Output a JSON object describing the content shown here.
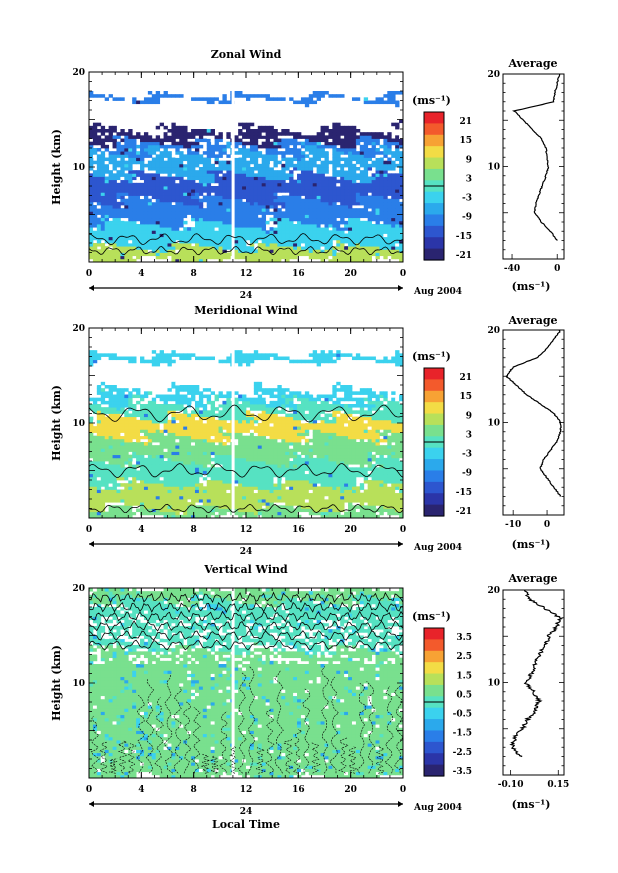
{
  "chart_data": [
    {
      "type": "heatmap",
      "title": "Zonal Wind",
      "ylabel": "Height (km)",
      "y_ticks": [
        "10",
        "20"
      ],
      "x_ticks": [
        "0",
        "4",
        "8",
        "12",
        "16",
        "20",
        "0"
      ],
      "day_label": "24",
      "month_label": "Aug 2004",
      "colorbar_unit": "(ms⁻¹)",
      "colorbar_ticks": [
        "21",
        "15",
        "9",
        "3",
        "-3",
        "-9",
        "-15",
        "-21"
      ],
      "avg_title": "Average",
      "avg_x_ticks": [
        "-40",
        "0"
      ],
      "avg_xlabel": "(ms⁻¹)",
      "avg_y_ticks": [
        "10",
        "20"
      ],
      "avg_xlim": [
        -48,
        6
      ],
      "avg_profile": {
        "height_km": [
          2,
          3,
          4,
          5,
          6,
          7,
          8,
          9,
          10,
          11,
          12,
          13,
          14,
          15,
          16,
          17,
          18,
          19,
          20
        ],
        "value": [
          0,
          -6,
          -14,
          -20,
          -19,
          -16,
          -13,
          -10,
          -8,
          -9,
          -10,
          -14,
          -22,
          -30,
          -38,
          -3,
          -2,
          0,
          2
        ]
      }
    },
    {
      "type": "heatmap",
      "title": "Meridional Wind",
      "ylabel": "Height (km)",
      "y_ticks": [
        "10",
        "20"
      ],
      "x_ticks": [
        "0",
        "4",
        "8",
        "12",
        "16",
        "20",
        "0"
      ],
      "day_label": "24",
      "month_label": "Aug 2004",
      "colorbar_unit": "(ms⁻¹)",
      "colorbar_ticks": [
        "21",
        "15",
        "9",
        "3",
        "-3",
        "-9",
        "-15",
        "-21"
      ],
      "avg_title": "Average",
      "avg_x_ticks": [
        "-10",
        "0"
      ],
      "avg_xlabel": "(ms⁻¹)",
      "avg_y_ticks": [
        "10",
        "20"
      ],
      "avg_xlim": [
        -13,
        5
      ],
      "avg_profile": {
        "height_km": [
          2,
          3,
          4,
          5,
          6,
          7,
          8,
          9,
          10,
          11,
          12,
          13,
          14,
          15,
          16,
          17,
          18,
          19,
          20
        ],
        "value": [
          4,
          2,
          0,
          -2,
          -1,
          1,
          3,
          4,
          4,
          2,
          -2,
          -6,
          -9,
          -12,
          -10,
          -3,
          0,
          2,
          4
        ]
      }
    },
    {
      "type": "heatmap",
      "title": "Vertical Wind",
      "ylabel": "Height (km)",
      "xlabel": "Local Time",
      "y_ticks": [
        "10",
        "20"
      ],
      "x_ticks": [
        "0",
        "4",
        "8",
        "12",
        "16",
        "20",
        "0"
      ],
      "day_label": "24",
      "month_label": "Aug 2004",
      "colorbar_unit": "(ms⁻¹)",
      "colorbar_ticks": [
        "3.5",
        "2.5",
        "1.5",
        "0.5",
        "-0.5",
        "-1.5",
        "-2.5",
        "-3.5"
      ],
      "avg_title": "Average",
      "avg_x_ticks": [
        "-0.10",
        "0.15"
      ],
      "avg_xlabel": "(ms⁻¹)",
      "avg_y_ticks": [
        "10",
        "20"
      ],
      "avg_xlim": [
        -0.14,
        0.18
      ],
      "avg_profile": {
        "height_km": [
          2,
          3,
          4,
          5,
          6,
          7,
          8,
          9,
          10,
          11,
          12,
          13,
          14,
          15,
          16,
          17,
          18,
          19,
          20
        ],
        "value": [
          -0.05,
          -0.09,
          -0.08,
          -0.04,
          -0.01,
          0.03,
          0.05,
          0.02,
          -0.02,
          0.01,
          0.03,
          0.05,
          0.08,
          0.1,
          0.14,
          0.16,
          0.08,
          0.0,
          -0.03
        ]
      }
    }
  ],
  "colors": {
    "colorbar": [
      "#e8232a",
      "#f35a2c",
      "#f7a234",
      "#f3dc45",
      "#b8e05a",
      "#79e08e",
      "#56e2c2",
      "#3bd2ee",
      "#2ba9ec",
      "#2a7ee8",
      "#2d56cf",
      "#2b35a8",
      "#2a2470"
    ],
    "zonal": {
      "surface": "#b8e05a",
      "low": "#3bd2ee",
      "mid": "#2a7ee8",
      "core": "#2d56cf",
      "top": "#2a2470",
      "upper": "#2ba9ec"
    },
    "meridional": {
      "surface": "#79e08e",
      "low": "#56e2c2",
      "mid": "#b8e05a",
      "highlight": "#f3dc45",
      "upper": "#3bd2ee",
      "dark": "#2a7ee8"
    },
    "vertical": {
      "base": "#79e08e",
      "teal": "#56e2c2",
      "cyan": "#3bd2ee",
      "blue": "#2ba9ec"
    }
  }
}
